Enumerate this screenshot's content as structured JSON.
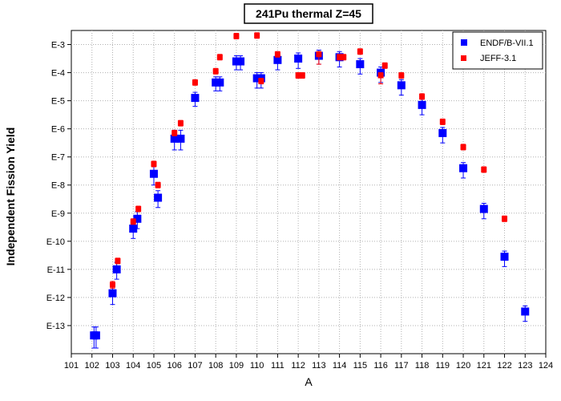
{
  "chart_data": {
    "type": "scatter",
    "title": "241Pu thermal Z=45",
    "xlabel": "A",
    "ylabel": "Independent Fission Yield",
    "xlim": [
      101,
      124
    ],
    "ylim_exponent": [
      -14,
      -2.5
    ],
    "y_scale": "log",
    "grid": true,
    "legend_position": "top-right",
    "x_ticks": [
      "101",
      "102",
      "103",
      "104",
      "105",
      "106",
      "107",
      "108",
      "109",
      "110",
      "111",
      "112",
      "113",
      "114",
      "115",
      "116",
      "117",
      "118",
      "119",
      "120",
      "121",
      "122",
      "123",
      "124"
    ],
    "y_ticks": [
      {
        "label": "E-3",
        "exp": -3
      },
      {
        "label": "E-4",
        "exp": -4
      },
      {
        "label": "E-5",
        "exp": -5
      },
      {
        "label": "E-6",
        "exp": -6
      },
      {
        "label": "E-7",
        "exp": -7
      },
      {
        "label": "E-8",
        "exp": -8
      },
      {
        "label": "E-9",
        "exp": -9
      },
      {
        "label": "E-10",
        "exp": -10
      },
      {
        "label": "E-11",
        "exp": -11
      },
      {
        "label": "E-12",
        "exp": -12
      },
      {
        "label": "E-13",
        "exp": -13
      }
    ],
    "series": [
      {
        "name": "ENDF/B-VII.1",
        "color": "#0000ff",
        "marker": "square-large",
        "points": [
          {
            "x": 102.1,
            "exp": -13.35,
            "err_lo": 0.45,
            "err_hi": 0.3
          },
          {
            "x": 102.2,
            "exp": -13.35,
            "err_lo": 0.45,
            "err_hi": 0.3
          },
          {
            "x": 103.0,
            "exp": -11.85,
            "err_lo": 0.4,
            "err_hi": 0.25
          },
          {
            "x": 103.2,
            "exp": -11.0,
            "err_lo": 0.35,
            "err_hi": 0.25
          },
          {
            "x": 104.0,
            "exp": -9.55,
            "err_lo": 0.35,
            "err_hi": 0.25
          },
          {
            "x": 104.2,
            "exp": -9.2,
            "err_lo": 0.35,
            "err_hi": 0.25
          },
          {
            "x": 105.0,
            "exp": -7.6,
            "err_lo": 0.4,
            "err_hi": 0.25
          },
          {
            "x": 105.2,
            "exp": -8.45,
            "err_lo": 0.35,
            "err_hi": 0.25
          },
          {
            "x": 106.0,
            "exp": -6.35,
            "err_lo": 0.4,
            "err_hi": 0.3
          },
          {
            "x": 106.3,
            "exp": -6.35,
            "err_lo": 0.4,
            "err_hi": 0.3
          },
          {
            "x": 107.0,
            "exp": -4.9,
            "err_lo": 0.3,
            "err_hi": 0.2
          },
          {
            "x": 108.0,
            "exp": -4.35,
            "err_lo": 0.3,
            "err_hi": 0.2
          },
          {
            "x": 108.2,
            "exp": -4.35,
            "err_lo": 0.3,
            "err_hi": 0.2
          },
          {
            "x": 109.0,
            "exp": -3.6,
            "err_lo": 0.3,
            "err_hi": 0.2
          },
          {
            "x": 109.2,
            "exp": -3.6,
            "err_lo": 0.3,
            "err_hi": 0.2
          },
          {
            "x": 110.0,
            "exp": -4.2,
            "err_lo": 0.35,
            "err_hi": 0.2
          },
          {
            "x": 110.2,
            "exp": -4.2,
            "err_lo": 0.35,
            "err_hi": 0.2
          },
          {
            "x": 111.0,
            "exp": -3.55,
            "err_lo": 0.35,
            "err_hi": 0.2
          },
          {
            "x": 112.0,
            "exp": -3.5,
            "err_lo": 0.35,
            "err_hi": 0.2
          },
          {
            "x": 113.0,
            "exp": -3.4,
            "err_lo": 0.3,
            "err_hi": 0.2
          },
          {
            "x": 114.0,
            "exp": -3.45,
            "err_lo": 0.35,
            "err_hi": 0.2
          },
          {
            "x": 115.0,
            "exp": -3.7,
            "err_lo": 0.35,
            "err_hi": 0.2
          },
          {
            "x": 116.0,
            "exp": -4.0,
            "err_lo": 0.35,
            "err_hi": 0.2
          },
          {
            "x": 117.0,
            "exp": -4.45,
            "err_lo": 0.35,
            "err_hi": 0.2
          },
          {
            "x": 118.0,
            "exp": -5.15,
            "err_lo": 0.35,
            "err_hi": 0.2
          },
          {
            "x": 119.0,
            "exp": -6.15,
            "err_lo": 0.35,
            "err_hi": 0.2
          },
          {
            "x": 120.0,
            "exp": -7.4,
            "err_lo": 0.35,
            "err_hi": 0.2
          },
          {
            "x": 121.0,
            "exp": -8.85,
            "err_lo": 0.35,
            "err_hi": 0.2
          },
          {
            "x": 122.0,
            "exp": -10.55,
            "err_lo": 0.35,
            "err_hi": 0.2
          },
          {
            "x": 123.0,
            "exp": -12.5,
            "err_lo": 0.35,
            "err_hi": 0.2
          }
        ]
      },
      {
        "name": "JEFF-3.1",
        "color": "#ff0000",
        "marker": "square-small",
        "points": [
          {
            "x": 103.0,
            "exp": -11.55,
            "err_lo": 0.12,
            "err_hi": 0.12
          },
          {
            "x": 103.25,
            "exp": -10.7,
            "err_lo": 0.1,
            "err_hi": 0.1
          },
          {
            "x": 104.0,
            "exp": -9.3,
            "err_lo": 0.1,
            "err_hi": 0.1
          },
          {
            "x": 104.25,
            "exp": -8.85,
            "err_lo": 0.1,
            "err_hi": 0.1
          },
          {
            "x": 105.0,
            "exp": -7.25,
            "err_lo": 0.1,
            "err_hi": 0.1
          },
          {
            "x": 105.2,
            "exp": -8.0,
            "err_lo": 0.1,
            "err_hi": 0.1
          },
          {
            "x": 106.0,
            "exp": -6.15,
            "err_lo": 0.1,
            "err_hi": 0.1
          },
          {
            "x": 106.3,
            "exp": -5.8,
            "err_lo": 0.1,
            "err_hi": 0.1
          },
          {
            "x": 107.0,
            "exp": -4.35,
            "err_lo": 0.1,
            "err_hi": 0.1
          },
          {
            "x": 108.0,
            "exp": -3.95,
            "err_lo": 0.1,
            "err_hi": 0.1
          },
          {
            "x": 108.2,
            "exp": -3.45,
            "err_lo": 0.1,
            "err_hi": 0.1
          },
          {
            "x": 109.0,
            "exp": -2.7,
            "err_lo": 0.1,
            "err_hi": 0.1
          },
          {
            "x": 110.0,
            "exp": -2.68,
            "err_lo": 0.1,
            "err_hi": 0.1
          },
          {
            "x": 110.2,
            "exp": -4.3,
            "err_lo": 0.1,
            "err_hi": 0.1
          },
          {
            "x": 111.0,
            "exp": -3.35,
            "err_lo": 0.1,
            "err_hi": 0.1
          },
          {
            "x": 112.0,
            "exp": -4.1,
            "err_lo": 0.1,
            "err_hi": 0.1
          },
          {
            "x": 112.2,
            "exp": -4.1,
            "err_lo": 0.1,
            "err_hi": 0.1
          },
          {
            "x": 113.0,
            "exp": -3.35,
            "err_lo": 0.35,
            "err_hi": 0.1
          },
          {
            "x": 114.0,
            "exp": -3.45,
            "err_lo": 0.1,
            "err_hi": 0.1
          },
          {
            "x": 114.2,
            "exp": -3.45,
            "err_lo": 0.1,
            "err_hi": 0.1
          },
          {
            "x": 115.0,
            "exp": -3.25,
            "err_lo": 0.1,
            "err_hi": 0.1
          },
          {
            "x": 116.0,
            "exp": -4.1,
            "err_lo": 0.3,
            "err_hi": 0.1
          },
          {
            "x": 116.2,
            "exp": -3.75,
            "err_lo": 0.1,
            "err_hi": 0.1
          },
          {
            "x": 117.0,
            "exp": -4.1,
            "err_lo": 0.1,
            "err_hi": 0.1
          },
          {
            "x": 118.0,
            "exp": -4.85,
            "err_lo": 0.1,
            "err_hi": 0.1
          },
          {
            "x": 119.0,
            "exp": -5.75,
            "err_lo": 0.1,
            "err_hi": 0.1
          },
          {
            "x": 120.0,
            "exp": -6.65,
            "err_lo": 0.1,
            "err_hi": 0.1
          },
          {
            "x": 121.0,
            "exp": -7.45,
            "err_lo": 0.1,
            "err_hi": 0.1
          },
          {
            "x": 122.0,
            "exp": -9.2,
            "err_lo": 0.1,
            "err_hi": 0.1
          }
        ]
      }
    ]
  }
}
